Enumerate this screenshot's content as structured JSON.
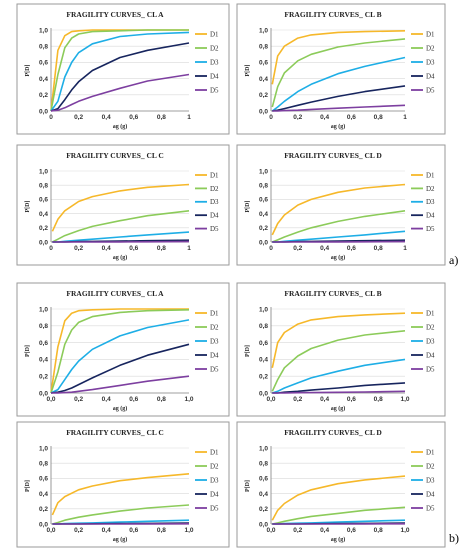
{
  "part_labels": [
    "a)",
    "b)"
  ],
  "colors": {
    "D1": "#F6B82A",
    "D2": "#8CCB5A",
    "D3": "#1EAEE6",
    "D4": "#17255E",
    "D5": "#7D3FA0"
  },
  "chart_data": [
    {
      "panel": "a",
      "type": "line",
      "title": "FRAGILITY CURVES_ CL A",
      "xlabel": "ag (g)",
      "ylabel": "P[D]",
      "xlim": [
        0,
        1
      ],
      "ylim": [
        0,
        1
      ],
      "xticks": [
        "0",
        "0,2",
        "0,4",
        "0,6",
        "0,8",
        "1"
      ],
      "yticks": [
        "0,0",
        "0,2",
        "0,4",
        "0,6",
        "0,8",
        "1,0"
      ],
      "series": [
        {
          "name": "D1",
          "x": [
            0,
            0.05,
            0.1,
            0.15,
            0.2,
            0.3,
            0.5,
            0.7,
            1
          ],
          "values": [
            0,
            0.75,
            0.93,
            0.98,
            0.99,
            1,
            1,
            1,
            1
          ]
        },
        {
          "name": "D2",
          "x": [
            0,
            0.05,
            0.1,
            0.15,
            0.2,
            0.3,
            0.5,
            0.7,
            1
          ],
          "values": [
            0,
            0.45,
            0.78,
            0.9,
            0.95,
            0.98,
            0.99,
            1,
            1
          ]
        },
        {
          "name": "D3",
          "x": [
            0,
            0.05,
            0.1,
            0.15,
            0.2,
            0.3,
            0.5,
            0.7,
            1
          ],
          "values": [
            0,
            0.12,
            0.42,
            0.6,
            0.72,
            0.83,
            0.92,
            0.95,
            0.97
          ]
        },
        {
          "name": "D4",
          "x": [
            0,
            0.05,
            0.1,
            0.15,
            0.2,
            0.3,
            0.5,
            0.7,
            1
          ],
          "values": [
            0,
            0.03,
            0.14,
            0.26,
            0.36,
            0.5,
            0.66,
            0.75,
            0.84
          ]
        },
        {
          "name": "D5",
          "x": [
            0,
            0.05,
            0.1,
            0.15,
            0.2,
            0.3,
            0.5,
            0.7,
            1
          ],
          "values": [
            0,
            0.01,
            0.04,
            0.08,
            0.12,
            0.18,
            0.28,
            0.37,
            0.45
          ]
        }
      ]
    },
    {
      "panel": "a",
      "type": "line",
      "title": "FRAGILITY CURVES_ CL B",
      "xlabel": "ag (g)",
      "ylabel": "P[D]",
      "xlim": [
        0,
        1
      ],
      "ylim": [
        0,
        1
      ],
      "xticks": [
        "0",
        "0,2",
        "0,4",
        "0,6",
        "0,8",
        "1"
      ],
      "yticks": [
        "0,0",
        "0,2",
        "0,4",
        "0,6",
        "0,8",
        "1,0"
      ],
      "series": [
        {
          "name": "D1",
          "x": [
            0.01,
            0.05,
            0.1,
            0.2,
            0.3,
            0.5,
            0.7,
            1
          ],
          "values": [
            0.33,
            0.68,
            0.8,
            0.9,
            0.94,
            0.97,
            0.98,
            0.99
          ]
        },
        {
          "name": "D2",
          "x": [
            0.01,
            0.05,
            0.1,
            0.2,
            0.3,
            0.5,
            0.7,
            1
          ],
          "values": [
            0.05,
            0.3,
            0.47,
            0.62,
            0.7,
            0.79,
            0.84,
            0.89
          ]
        },
        {
          "name": "D3",
          "x": [
            0.01,
            0.05,
            0.1,
            0.2,
            0.3,
            0.5,
            0.7,
            1
          ],
          "values": [
            0,
            0.05,
            0.12,
            0.24,
            0.33,
            0.46,
            0.55,
            0.66
          ]
        },
        {
          "name": "D4",
          "x": [
            0.01,
            0.05,
            0.1,
            0.2,
            0.3,
            0.5,
            0.7,
            1
          ],
          "values": [
            0,
            0.01,
            0.03,
            0.07,
            0.11,
            0.18,
            0.24,
            0.31
          ]
        },
        {
          "name": "D5",
          "x": [
            0.01,
            0.05,
            0.1,
            0.2,
            0.3,
            0.5,
            0.7,
            1
          ],
          "values": [
            0,
            0,
            0.005,
            0.01,
            0.02,
            0.035,
            0.05,
            0.07
          ]
        }
      ]
    },
    {
      "panel": "a",
      "type": "line",
      "title": "FRAGILITY CURVES_ CL C",
      "xlabel": "ag (g)",
      "ylabel": "P[D]",
      "xlim": [
        0,
        1
      ],
      "ylim": [
        0,
        1
      ],
      "xticks": [
        "0",
        "0,2",
        "0,4",
        "0,6",
        "0,8",
        "1"
      ],
      "yticks": [
        "0,0",
        "0,2",
        "0,4",
        "0,6",
        "0,8",
        "1,0"
      ],
      "series": [
        {
          "name": "D1",
          "x": [
            0.01,
            0.05,
            0.1,
            0.2,
            0.3,
            0.5,
            0.7,
            1
          ],
          "values": [
            0.15,
            0.32,
            0.44,
            0.57,
            0.64,
            0.72,
            0.77,
            0.81
          ]
        },
        {
          "name": "D2",
          "x": [
            0.01,
            0.05,
            0.1,
            0.2,
            0.3,
            0.5,
            0.7,
            1
          ],
          "values": [
            0,
            0.04,
            0.09,
            0.16,
            0.22,
            0.3,
            0.37,
            0.44
          ]
        },
        {
          "name": "D3",
          "x": [
            0.01,
            0.05,
            0.1,
            0.2,
            0.3,
            0.5,
            0.7,
            1
          ],
          "values": [
            0,
            0,
            0.01,
            0.025,
            0.04,
            0.07,
            0.1,
            0.14
          ]
        },
        {
          "name": "D4",
          "x": [
            0.01,
            0.05,
            0.1,
            0.2,
            0.3,
            0.5,
            0.7,
            1
          ],
          "values": [
            0,
            0,
            0,
            0.005,
            0.008,
            0.012,
            0.018,
            0.025
          ]
        },
        {
          "name": "D5",
          "x": [
            0.01,
            0.05,
            0.1,
            0.2,
            0.3,
            0.5,
            0.7,
            1
          ],
          "values": [
            0,
            0,
            0,
            0,
            0,
            0.002,
            0.003,
            0.005
          ]
        }
      ]
    },
    {
      "panel": "a",
      "type": "line",
      "title": "FRAGILITY CURVES_ CL D",
      "xlabel": "ag (g)",
      "ylabel": "P[D]",
      "xlim": [
        0,
        1
      ],
      "ylim": [
        0,
        1
      ],
      "xticks": [
        "0",
        "0,2",
        "0,4",
        "0,6",
        "0,8",
        "1"
      ],
      "yticks": [
        "0,0",
        "0,2",
        "0,4",
        "0,6",
        "0,8",
        "1,0"
      ],
      "series": [
        {
          "name": "D1",
          "x": [
            0.01,
            0.05,
            0.1,
            0.2,
            0.3,
            0.5,
            0.7,
            1
          ],
          "values": [
            0.1,
            0.26,
            0.38,
            0.52,
            0.6,
            0.7,
            0.76,
            0.81
          ]
        },
        {
          "name": "D2",
          "x": [
            0.01,
            0.05,
            0.1,
            0.2,
            0.3,
            0.5,
            0.7,
            1
          ],
          "values": [
            0,
            0.03,
            0.07,
            0.14,
            0.2,
            0.29,
            0.36,
            0.44
          ]
        },
        {
          "name": "D3",
          "x": [
            0.01,
            0.05,
            0.1,
            0.2,
            0.3,
            0.5,
            0.7,
            1
          ],
          "values": [
            0,
            0,
            0.01,
            0.025,
            0.04,
            0.07,
            0.1,
            0.15
          ]
        },
        {
          "name": "D4",
          "x": [
            0.01,
            0.05,
            0.1,
            0.2,
            0.3,
            0.5,
            0.7,
            1
          ],
          "values": [
            0,
            0,
            0,
            0.005,
            0.008,
            0.012,
            0.018,
            0.025
          ]
        },
        {
          "name": "D5",
          "x": [
            0.01,
            0.05,
            0.1,
            0.2,
            0.3,
            0.5,
            0.7,
            1
          ],
          "values": [
            0,
            0,
            0,
            0,
            0,
            0.002,
            0.003,
            0.005
          ]
        }
      ]
    },
    {
      "panel": "b",
      "type": "line",
      "title": "FRAGILITY CURVES_ CL A",
      "xlabel": "ag (g)",
      "ylabel": "P[D]",
      "xlim": [
        0,
        1
      ],
      "ylim": [
        0,
        1
      ],
      "xticks": [
        "0,0",
        "0,2",
        "0,4",
        "0,6",
        "0,8",
        "1,0"
      ],
      "yticks": [
        "0,0",
        "0,2",
        "0,4",
        "0,6",
        "0,8",
        "1,0"
      ],
      "series": [
        {
          "name": "D1",
          "x": [
            0,
            0.05,
            0.1,
            0.15,
            0.2,
            0.3,
            0.5,
            0.7,
            1
          ],
          "values": [
            0,
            0.55,
            0.86,
            0.95,
            0.98,
            0.99,
            1,
            1,
            1
          ]
        },
        {
          "name": "D2",
          "x": [
            0,
            0.05,
            0.1,
            0.15,
            0.2,
            0.3,
            0.5,
            0.7,
            1
          ],
          "values": [
            0,
            0.25,
            0.58,
            0.75,
            0.84,
            0.91,
            0.96,
            0.98,
            0.99
          ]
        },
        {
          "name": "D3",
          "x": [
            0,
            0.05,
            0.1,
            0.15,
            0.2,
            0.3,
            0.5,
            0.7,
            1
          ],
          "values": [
            0,
            0.04,
            0.16,
            0.28,
            0.38,
            0.52,
            0.68,
            0.78,
            0.87
          ]
        },
        {
          "name": "D4",
          "x": [
            0,
            0.05,
            0.1,
            0.15,
            0.2,
            0.3,
            0.5,
            0.7,
            1
          ],
          "values": [
            0,
            0.01,
            0.03,
            0.06,
            0.1,
            0.18,
            0.33,
            0.45,
            0.58
          ]
        },
        {
          "name": "D5",
          "x": [
            0,
            0.05,
            0.1,
            0.15,
            0.2,
            0.3,
            0.5,
            0.7,
            1
          ],
          "values": [
            0,
            0,
            0.005,
            0.01,
            0.02,
            0.04,
            0.09,
            0.14,
            0.2
          ]
        }
      ]
    },
    {
      "panel": "b",
      "type": "line",
      "title": "FRAGILITY CURVES_ CL B",
      "xlabel": "ag (g)",
      "ylabel": "P[D]",
      "xlim": [
        0,
        1
      ],
      "ylim": [
        0,
        1
      ],
      "xticks": [
        "0,0",
        "0,2",
        "0,4",
        "0,6",
        "0,8",
        "1,0"
      ],
      "yticks": [
        "0,0",
        "0,2",
        "0,4",
        "0,6",
        "0,8",
        "1,0"
      ],
      "series": [
        {
          "name": "D1",
          "x": [
            0.01,
            0.05,
            0.1,
            0.2,
            0.3,
            0.5,
            0.7,
            1
          ],
          "values": [
            0.3,
            0.6,
            0.72,
            0.82,
            0.87,
            0.91,
            0.93,
            0.95
          ]
        },
        {
          "name": "D2",
          "x": [
            0.01,
            0.05,
            0.1,
            0.2,
            0.3,
            0.5,
            0.7,
            1
          ],
          "values": [
            0.02,
            0.16,
            0.3,
            0.44,
            0.53,
            0.63,
            0.69,
            0.74
          ]
        },
        {
          "name": "D3",
          "x": [
            0.01,
            0.05,
            0.1,
            0.2,
            0.3,
            0.5,
            0.7,
            1
          ],
          "values": [
            0,
            0.02,
            0.06,
            0.12,
            0.18,
            0.26,
            0.33,
            0.4
          ]
        },
        {
          "name": "D4",
          "x": [
            0.01,
            0.05,
            0.1,
            0.2,
            0.3,
            0.5,
            0.7,
            1
          ],
          "values": [
            0,
            0,
            0.01,
            0.02,
            0.035,
            0.06,
            0.09,
            0.12
          ]
        },
        {
          "name": "D5",
          "x": [
            0.01,
            0.05,
            0.1,
            0.2,
            0.3,
            0.5,
            0.7,
            1
          ],
          "values": [
            0,
            0,
            0,
            0.003,
            0.005,
            0.008,
            0.012,
            0.02
          ]
        }
      ]
    },
    {
      "panel": "b",
      "type": "line",
      "title": "FRAGILITY CURVES_ CL C",
      "xlabel": "ag (g)",
      "ylabel": "P[D]",
      "xlim": [
        0,
        1
      ],
      "ylim": [
        0,
        1
      ],
      "xticks": [
        "0,0",
        "0,2",
        "0,4",
        "0,6",
        "0,8",
        "1,0"
      ],
      "yticks": [
        "0,0",
        "0,2",
        "0,4",
        "0,6",
        "0,8",
        "1,0"
      ],
      "series": [
        {
          "name": "D1",
          "x": [
            0.01,
            0.05,
            0.1,
            0.2,
            0.3,
            0.5,
            0.7,
            1
          ],
          "values": [
            0.12,
            0.28,
            0.36,
            0.45,
            0.5,
            0.57,
            0.61,
            0.66
          ]
        },
        {
          "name": "D2",
          "x": [
            0.01,
            0.05,
            0.1,
            0.2,
            0.3,
            0.5,
            0.7,
            1
          ],
          "values": [
            0,
            0.02,
            0.05,
            0.09,
            0.12,
            0.17,
            0.21,
            0.25
          ]
        },
        {
          "name": "D3",
          "x": [
            0.01,
            0.05,
            0.1,
            0.2,
            0.3,
            0.5,
            0.7,
            1
          ],
          "values": [
            0,
            0,
            0.005,
            0.01,
            0.015,
            0.025,
            0.035,
            0.05
          ]
        },
        {
          "name": "D4",
          "x": [
            0.01,
            0.05,
            0.1,
            0.2,
            0.3,
            0.5,
            0.7,
            1
          ],
          "values": [
            0,
            0,
            0,
            0,
            0.003,
            0.005,
            0.008,
            0.012
          ]
        },
        {
          "name": "D5",
          "x": [
            0.01,
            0.05,
            0.1,
            0.2,
            0.3,
            0.5,
            0.7,
            1
          ],
          "values": [
            0,
            0,
            0,
            0,
            0,
            0,
            0.001,
            0.002
          ]
        }
      ]
    },
    {
      "panel": "b",
      "type": "line",
      "title": "FRAGILITY CURVES_ CL D",
      "xlabel": "ag (g)",
      "ylabel": "P[D]",
      "xlim": [
        0,
        1
      ],
      "ylim": [
        0,
        1
      ],
      "xticks": [
        "0,0",
        "0,2",
        "0,4",
        "0,6",
        "0,8",
        "1,0"
      ],
      "yticks": [
        "0,0",
        "0,2",
        "0,4",
        "0,6",
        "0,8",
        "1,0"
      ],
      "series": [
        {
          "name": "D1",
          "x": [
            0.01,
            0.05,
            0.1,
            0.2,
            0.3,
            0.5,
            0.7,
            1
          ],
          "values": [
            0.05,
            0.18,
            0.27,
            0.38,
            0.45,
            0.53,
            0.58,
            0.63
          ]
        },
        {
          "name": "D2",
          "x": [
            0.01,
            0.05,
            0.1,
            0.2,
            0.3,
            0.5,
            0.7,
            1
          ],
          "values": [
            0,
            0.015,
            0.035,
            0.07,
            0.1,
            0.14,
            0.18,
            0.22
          ]
        },
        {
          "name": "D3",
          "x": [
            0.01,
            0.05,
            0.1,
            0.2,
            0.3,
            0.5,
            0.7,
            1
          ],
          "values": [
            0,
            0,
            0.005,
            0.01,
            0.015,
            0.025,
            0.035,
            0.05
          ]
        },
        {
          "name": "D4",
          "x": [
            0.01,
            0.05,
            0.1,
            0.2,
            0.3,
            0.5,
            0.7,
            1
          ],
          "values": [
            0,
            0,
            0,
            0,
            0.003,
            0.005,
            0.008,
            0.012
          ]
        },
        {
          "name": "D5",
          "x": [
            0.01,
            0.05,
            0.1,
            0.2,
            0.3,
            0.5,
            0.7,
            1
          ],
          "values": [
            0,
            0,
            0,
            0,
            0,
            0,
            0.001,
            0.002
          ]
        }
      ]
    }
  ]
}
